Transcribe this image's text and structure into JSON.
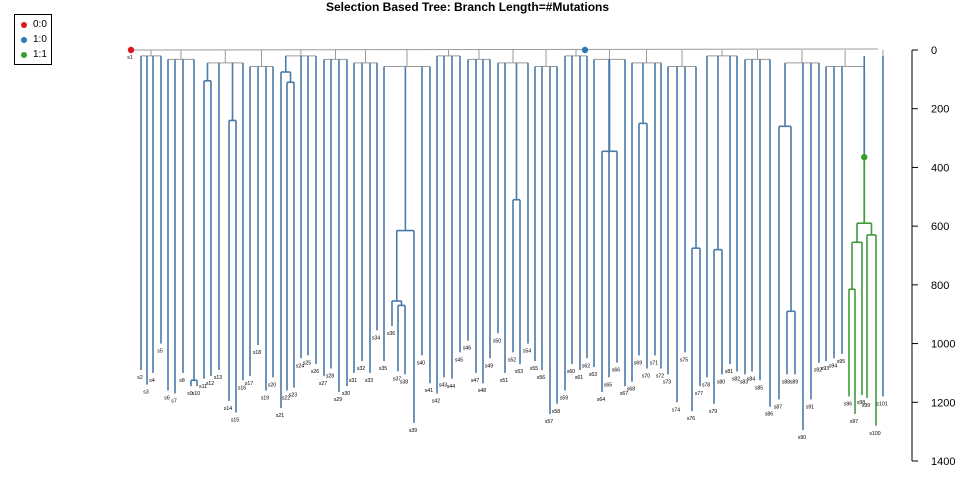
{
  "title": "Selection Based Tree: Branch Length=#Mutations",
  "legend": [
    {
      "label": "0:0",
      "color": "#d7191c"
    },
    {
      "label": "1:0",
      "color": "#2c7bb6"
    },
    {
      "label": "1:1",
      "color": "#33a02c"
    }
  ],
  "axis": {
    "ticks": [
      0,
      200,
      400,
      600,
      800,
      1000,
      1200,
      1400
    ],
    "range": [
      0,
      1400
    ]
  },
  "colors": {
    "branch_1_0": "#4a7aa8",
    "branch_1_1": "#3f9a3a",
    "connector": "#9a9a9a"
  },
  "tips": [
    {
      "label": "s1",
      "depth": 0
    },
    {
      "label": "s2",
      "depth": 1090
    },
    {
      "label": "s3",
      "depth": 1140
    },
    {
      "label": "s4",
      "depth": 1100
    },
    {
      "label": "s5",
      "depth": 1000
    },
    {
      "label": "s6",
      "depth": 1160
    },
    {
      "label": "s7",
      "depth": 1170
    },
    {
      "label": "s8",
      "depth": 1100
    },
    {
      "label": "s9",
      "depth": 1145
    },
    {
      "label": "s10",
      "depth": 1145
    },
    {
      "label": "s11",
      "depth": 1120
    },
    {
      "label": "s12",
      "depth": 1110
    },
    {
      "label": "s13",
      "depth": 1090
    },
    {
      "label": "s14",
      "depth": 1195
    },
    {
      "label": "s15",
      "depth": 1235
    },
    {
      "label": "s16",
      "depth": 1125
    },
    {
      "label": "s17",
      "depth": 1110
    },
    {
      "label": "s18",
      "depth": 1005
    },
    {
      "label": "s19",
      "depth": 1160
    },
    {
      "label": "s20",
      "depth": 1115
    },
    {
      "label": "s21",
      "depth": 1220
    },
    {
      "label": "s22",
      "depth": 1160
    },
    {
      "label": "s23",
      "depth": 1150
    },
    {
      "label": "s24",
      "depth": 1050
    },
    {
      "label": "s25",
      "depth": 1040
    },
    {
      "label": "s26",
      "depth": 1070
    },
    {
      "label": "s27",
      "depth": 1110
    },
    {
      "label": "s28",
      "depth": 1085
    },
    {
      "label": "s29",
      "depth": 1165
    },
    {
      "label": "s30",
      "depth": 1145
    },
    {
      "label": "s31",
      "depth": 1100
    },
    {
      "label": "s32",
      "depth": 1060
    },
    {
      "label": "s33",
      "depth": 1100
    },
    {
      "label": "s34",
      "depth": 955
    },
    {
      "label": "s35",
      "depth": 1060
    },
    {
      "label": "s36",
      "depth": 940
    },
    {
      "label": "s37",
      "depth": 1095
    },
    {
      "label": "s38",
      "depth": 1105
    },
    {
      "label": "s39",
      "depth": 1270
    },
    {
      "label": "s40",
      "depth": 1040
    },
    {
      "label": "s41",
      "depth": 1135
    },
    {
      "label": "s42",
      "depth": 1170
    },
    {
      "label": "s43",
      "depth": 1115
    },
    {
      "label": "s44",
      "depth": 1120
    },
    {
      "label": "s45",
      "depth": 1030
    },
    {
      "label": "s46",
      "depth": 990
    },
    {
      "label": "s47",
      "depth": 1100
    },
    {
      "label": "s48",
      "depth": 1135
    },
    {
      "label": "s49",
      "depth": 1050
    },
    {
      "label": "s50",
      "depth": 965
    },
    {
      "label": "s51",
      "depth": 1100
    },
    {
      "label": "s52",
      "depth": 1030
    },
    {
      "label": "s53",
      "depth": 1070
    },
    {
      "label": "s54",
      "depth": 1000
    },
    {
      "label": "s55",
      "depth": 1060
    },
    {
      "label": "s56",
      "depth": 1090
    },
    {
      "label": "s57",
      "depth": 1240
    },
    {
      "label": "s58",
      "depth": 1205
    },
    {
      "label": "s59",
      "depth": 1160
    },
    {
      "label": "s60",
      "depth": 1070
    },
    {
      "label": "s61",
      "depth": 1090
    },
    {
      "label": "s62",
      "depth": 1050
    },
    {
      "label": "s63",
      "depth": 1080
    },
    {
      "label": "s64",
      "depth": 1165
    },
    {
      "label": "s65",
      "depth": 1115
    },
    {
      "label": "s66",
      "depth": 1065
    },
    {
      "label": "s67",
      "depth": 1145
    },
    {
      "label": "s68",
      "depth": 1130
    },
    {
      "label": "s69",
      "depth": 1040
    },
    {
      "label": "s70",
      "depth": 1085
    },
    {
      "label": "s71",
      "depth": 1040
    },
    {
      "label": "s72",
      "depth": 1085
    },
    {
      "label": "s73",
      "depth": 1105
    },
    {
      "label": "s74",
      "depth": 1200
    },
    {
      "label": "s75",
      "depth": 1030
    },
    {
      "label": "s76",
      "depth": 1230
    },
    {
      "label": "s77",
      "depth": 1145
    },
    {
      "label": "s78",
      "depth": 1115
    },
    {
      "label": "s79",
      "depth": 1205
    },
    {
      "label": "s80",
      "depth": 1105
    },
    {
      "label": "s81",
      "depth": 1070
    },
    {
      "label": "s82",
      "depth": 1095
    },
    {
      "label": "s83",
      "depth": 1105
    },
    {
      "label": "s84",
      "depth": 1095
    },
    {
      "label": "s85",
      "depth": 1125
    },
    {
      "label": "s86",
      "depth": 1215
    },
    {
      "label": "s87",
      "depth": 1190
    },
    {
      "label": "s88",
      "depth": 1105
    },
    {
      "label": "s89",
      "depth": 1105
    },
    {
      "label": "s90",
      "depth": 1295
    },
    {
      "label": "s91",
      "depth": 1190
    },
    {
      "label": "s92",
      "depth": 1065
    },
    {
      "label": "s93",
      "depth": 1060
    },
    {
      "label": "s94",
      "depth": 1050
    },
    {
      "label": "s95",
      "depth": 1035
    },
    {
      "label": "s96",
      "depth": 1180
    },
    {
      "label": "s97",
      "depth": 1240
    },
    {
      "label": "s98",
      "depth": 1175
    },
    {
      "label": "s99",
      "depth": 1185
    },
    {
      "label": "s100",
      "depth": 1280
    },
    {
      "label": "s101",
      "depth": 1180
    }
  ],
  "nodes": [
    {
      "id": "n9_10",
      "children": [
        "s9",
        "s10"
      ],
      "depth": 1125
    },
    {
      "id": "n11_12",
      "children": [
        "s11",
        "s12"
      ],
      "depth": 105
    },
    {
      "id": "n14_15",
      "children": [
        "s14",
        "s15"
      ],
      "depth": 240
    },
    {
      "id": "n22_23",
      "children": [
        "s22",
        "s23"
      ],
      "depth": 110
    },
    {
      "id": "n21_22",
      "children": [
        "s21",
        "n22_23"
      ],
      "depth": 75
    },
    {
      "id": "n37_38",
      "children": [
        "s37",
        "s38"
      ],
      "depth": 870
    },
    {
      "id": "n36_37",
      "children": [
        "s36",
        "n37_38"
      ],
      "depth": 855
    },
    {
      "id": "n36_39",
      "children": [
        "n36_37",
        "s39"
      ],
      "depth": 615
    },
    {
      "id": "n52_53",
      "children": [
        "s52",
        "s53"
      ],
      "depth": 510
    },
    {
      "id": "n64_66",
      "children": [
        "s64",
        "s66"
      ],
      "depth": 345
    },
    {
      "id": "n69_70",
      "children": [
        "s69",
        "s70"
      ],
      "depth": 250
    },
    {
      "id": "n76_77",
      "children": [
        "s76",
        "s77"
      ],
      "depth": 675
    },
    {
      "id": "n79_80",
      "children": [
        "s79",
        "s80"
      ],
      "depth": 680
    },
    {
      "id": "n88_89",
      "children": [
        "s88",
        "s89"
      ],
      "depth": 890
    },
    {
      "id": "n87_89",
      "children": [
        "s87",
        "n88_89"
      ],
      "depth": 260
    },
    {
      "id": "n96_97",
      "children": [
        "s96",
        "s97"
      ],
      "depth": 815
    },
    {
      "id": "n96_98",
      "children": [
        "n96_97",
        "s98"
      ],
      "depth": 655
    },
    {
      "id": "n99_100",
      "children": [
        "s99",
        "s100"
      ],
      "depth": 630
    },
    {
      "id": "n96_100",
      "children": [
        "n96_98",
        "n99_100"
      ],
      "depth": 590
    },
    {
      "id": "n_green_root",
      "children": [
        "n96_100"
      ],
      "depth": 365,
      "marker": "1:1"
    }
  ]
}
